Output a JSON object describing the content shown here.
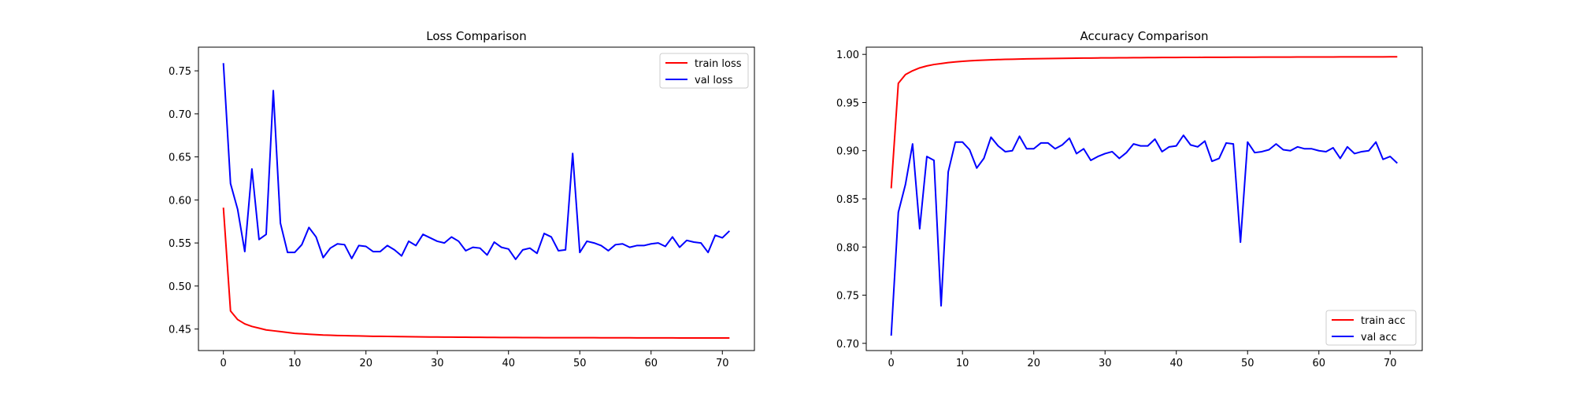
{
  "chart_data": [
    {
      "type": "line",
      "title": "Loss Comparison",
      "xlabel": "",
      "ylabel": "",
      "xlim": [
        -3.5,
        74.5
      ],
      "ylim": [
        0.425,
        0.7775
      ],
      "xticks": [
        0,
        10,
        20,
        30,
        40,
        50,
        60,
        70
      ],
      "yticks": [
        0.45,
        0.5,
        0.55,
        0.6,
        0.65,
        0.7,
        0.75
      ],
      "ytick_labels": [
        "0.45",
        "0.50",
        "0.55",
        "0.60",
        "0.65",
        "0.70",
        "0.75"
      ],
      "legend_placement": "top-right",
      "grid": false,
      "x": [
        0,
        1,
        2,
        3,
        4,
        5,
        6,
        7,
        8,
        9,
        10,
        11,
        12,
        13,
        14,
        15,
        16,
        17,
        18,
        19,
        20,
        21,
        22,
        23,
        24,
        25,
        26,
        27,
        28,
        29,
        30,
        31,
        32,
        33,
        34,
        35,
        36,
        37,
        38,
        39,
        40,
        41,
        42,
        43,
        44,
        45,
        46,
        47,
        48,
        49,
        50,
        51,
        52,
        53,
        54,
        55,
        56,
        57,
        58,
        59,
        60,
        61,
        62,
        63,
        64,
        65,
        66,
        67,
        68,
        69,
        70,
        71
      ],
      "series": [
        {
          "name": "train loss",
          "color": "#ff0000",
          "values": [
            0.591,
            0.471,
            0.461,
            0.456,
            0.453,
            0.451,
            0.449,
            0.448,
            0.447,
            0.446,
            0.445,
            0.4445,
            0.444,
            0.4435,
            0.443,
            0.4428,
            0.4425,
            0.4423,
            0.4421,
            0.442,
            0.4418,
            0.4416,
            0.4415,
            0.4414,
            0.4413,
            0.4412,
            0.4411,
            0.441,
            0.4409,
            0.4408,
            0.4407,
            0.4406,
            0.4406,
            0.4405,
            0.4405,
            0.4404,
            0.4404,
            0.4403,
            0.4403,
            0.4402,
            0.4402,
            0.4402,
            0.4401,
            0.4401,
            0.4401,
            0.44,
            0.44,
            0.44,
            0.44,
            0.4399,
            0.4399,
            0.4399,
            0.4399,
            0.4398,
            0.4398,
            0.4398,
            0.4398,
            0.4398,
            0.4397,
            0.4397,
            0.4397,
            0.4397,
            0.4397,
            0.4397,
            0.4396,
            0.4396,
            0.4396,
            0.4396,
            0.4396,
            0.4396,
            0.4396,
            0.4396
          ]
        },
        {
          "name": "val loss",
          "color": "#0000ff",
          "values": [
            0.759,
            0.619,
            0.589,
            0.54,
            0.636,
            0.554,
            0.56,
            0.727,
            0.573,
            0.539,
            0.539,
            0.548,
            0.568,
            0.557,
            0.533,
            0.544,
            0.549,
            0.548,
            0.532,
            0.547,
            0.546,
            0.54,
            0.54,
            0.547,
            0.542,
            0.535,
            0.552,
            0.547,
            0.56,
            0.556,
            0.552,
            0.55,
            0.557,
            0.552,
            0.541,
            0.545,
            0.544,
            0.536,
            0.551,
            0.545,
            0.543,
            0.531,
            0.542,
            0.544,
            0.538,
            0.561,
            0.557,
            0.541,
            0.542,
            0.654,
            0.539,
            0.552,
            0.55,
            0.547,
            0.541,
            0.548,
            0.549,
            0.545,
            0.547,
            0.547,
            0.549,
            0.55,
            0.546,
            0.557,
            0.545,
            0.553,
            0.551,
            0.55,
            0.539,
            0.559,
            0.556,
            0.564
          ]
        }
      ]
    },
    {
      "type": "line",
      "title": "Accuracy Comparison",
      "xlabel": "",
      "ylabel": "",
      "xlim": [
        -3.5,
        74.5
      ],
      "ylim": [
        0.6925,
        1.0075
      ],
      "xticks": [
        0,
        10,
        20,
        30,
        40,
        50,
        60,
        70
      ],
      "yticks": [
        0.7,
        0.75,
        0.8,
        0.85,
        0.9,
        0.95,
        1.0
      ],
      "ytick_labels": [
        "0.70",
        "0.75",
        "0.80",
        "0.85",
        "0.90",
        "0.95",
        "1.00"
      ],
      "legend_placement": "bottom-right",
      "grid": false,
      "x": [
        0,
        1,
        2,
        3,
        4,
        5,
        6,
        7,
        8,
        9,
        10,
        11,
        12,
        13,
        14,
        15,
        16,
        17,
        18,
        19,
        20,
        21,
        22,
        23,
        24,
        25,
        26,
        27,
        28,
        29,
        30,
        31,
        32,
        33,
        34,
        35,
        36,
        37,
        38,
        39,
        40,
        41,
        42,
        43,
        44,
        45,
        46,
        47,
        48,
        49,
        50,
        51,
        52,
        53,
        54,
        55,
        56,
        57,
        58,
        59,
        60,
        61,
        62,
        63,
        64,
        65,
        66,
        67,
        68,
        69,
        70,
        71
      ],
      "series": [
        {
          "name": "train acc",
          "color": "#ff0000",
          "values": [
            0.861,
            0.97,
            0.979,
            0.983,
            0.986,
            0.988,
            0.9895,
            0.9905,
            0.9915,
            0.9922,
            0.9928,
            0.9933,
            0.9937,
            0.994,
            0.9943,
            0.9946,
            0.9948,
            0.995,
            0.9952,
            0.9954,
            0.9955,
            0.9956,
            0.9957,
            0.9958,
            0.9959,
            0.996,
            0.9961,
            0.9962,
            0.9962,
            0.9963,
            0.9964,
            0.9964,
            0.9965,
            0.9965,
            0.9966,
            0.9966,
            0.9967,
            0.9967,
            0.9968,
            0.9968,
            0.9968,
            0.9969,
            0.9969,
            0.9969,
            0.997,
            0.997,
            0.997,
            0.997,
            0.9971,
            0.9971,
            0.9971,
            0.9971,
            0.9972,
            0.9972,
            0.9972,
            0.9972,
            0.9972,
            0.9973,
            0.9973,
            0.9973,
            0.9973,
            0.9973,
            0.9973,
            0.9974,
            0.9974,
            0.9974,
            0.9974,
            0.9974,
            0.9974,
            0.9974,
            0.9975,
            0.9975
          ]
        },
        {
          "name": "val acc",
          "color": "#0000ff",
          "values": [
            0.708,
            0.836,
            0.865,
            0.907,
            0.819,
            0.894,
            0.89,
            0.739,
            0.878,
            0.909,
            0.909,
            0.901,
            0.882,
            0.892,
            0.914,
            0.905,
            0.899,
            0.9,
            0.915,
            0.902,
            0.902,
            0.908,
            0.908,
            0.902,
            0.906,
            0.913,
            0.897,
            0.902,
            0.89,
            0.894,
            0.897,
            0.899,
            0.892,
            0.898,
            0.907,
            0.905,
            0.905,
            0.912,
            0.899,
            0.904,
            0.905,
            0.916,
            0.906,
            0.904,
            0.91,
            0.889,
            0.892,
            0.908,
            0.907,
            0.805,
            0.909,
            0.898,
            0.899,
            0.901,
            0.907,
            0.901,
            0.9,
            0.904,
            0.902,
            0.902,
            0.9,
            0.899,
            0.903,
            0.892,
            0.904,
            0.897,
            0.899,
            0.9,
            0.909,
            0.891,
            0.894,
            0.887
          ]
        }
      ]
    }
  ]
}
